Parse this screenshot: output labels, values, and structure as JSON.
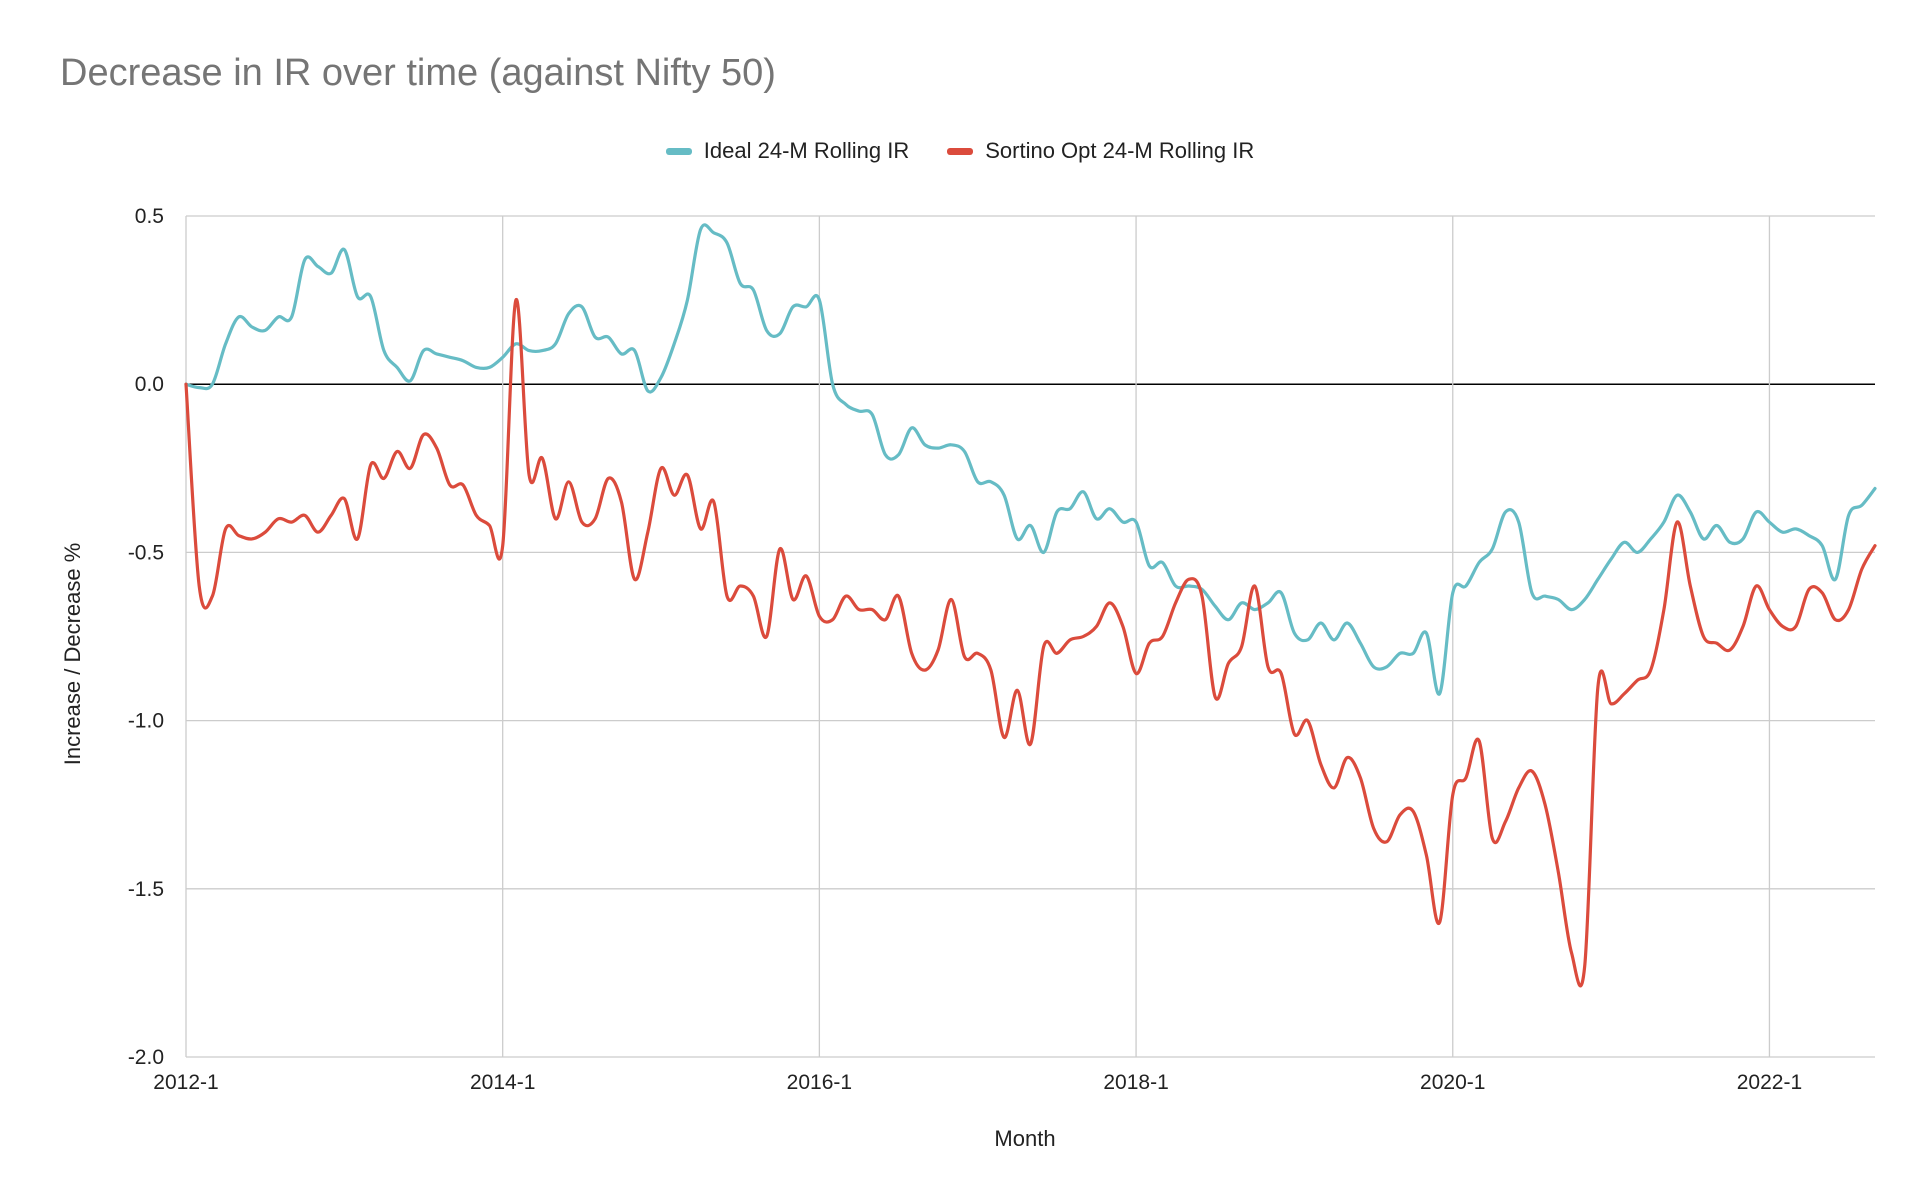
{
  "chart_data": {
    "type": "line",
    "title": "Decrease in IR over time (against Nifty 50)",
    "xlabel": "Month",
    "ylabel": "Increase / Decrease %",
    "x_tick_labels": [
      "2012-1",
      "2014-1",
      "2016-1",
      "2018-1",
      "2020-1",
      "2022-1"
    ],
    "y_tick_labels": [
      "0.5",
      "0.0",
      "-0.5",
      "-1.0",
      "-1.5",
      "-2.0"
    ],
    "ylim": [
      -2.0,
      0.5
    ],
    "xlim": [
      "2012-1",
      "2022-9"
    ],
    "grid": true,
    "legend_position": "top",
    "x": [
      "2012-1",
      "2012-2",
      "2012-3",
      "2012-4",
      "2012-5",
      "2012-6",
      "2012-7",
      "2012-8",
      "2012-9",
      "2012-10",
      "2012-11",
      "2012-12",
      "2013-1",
      "2013-2",
      "2013-3",
      "2013-4",
      "2013-5",
      "2013-6",
      "2013-7",
      "2013-8",
      "2013-9",
      "2013-10",
      "2013-11",
      "2013-12",
      "2014-1",
      "2014-2",
      "2014-3",
      "2014-4",
      "2014-5",
      "2014-6",
      "2014-7",
      "2014-8",
      "2014-9",
      "2014-10",
      "2014-11",
      "2014-12",
      "2015-1",
      "2015-2",
      "2015-3",
      "2015-4",
      "2015-5",
      "2015-6",
      "2015-7",
      "2015-8",
      "2015-9",
      "2015-10",
      "2015-11",
      "2015-12",
      "2016-1",
      "2016-2",
      "2016-3",
      "2016-4",
      "2016-5",
      "2016-6",
      "2016-7",
      "2016-8",
      "2016-9",
      "2016-10",
      "2016-11",
      "2016-12",
      "2017-1",
      "2017-2",
      "2017-3",
      "2017-4",
      "2017-5",
      "2017-6",
      "2017-7",
      "2017-8",
      "2017-9",
      "2017-10",
      "2017-11",
      "2017-12",
      "2018-1",
      "2018-2",
      "2018-3",
      "2018-4",
      "2018-5",
      "2018-6",
      "2018-7",
      "2018-8",
      "2018-9",
      "2018-10",
      "2018-11",
      "2018-12",
      "2019-1",
      "2019-2",
      "2019-3",
      "2019-4",
      "2019-5",
      "2019-6",
      "2019-7",
      "2019-8",
      "2019-9",
      "2019-10",
      "2019-11",
      "2019-12",
      "2020-1",
      "2020-2",
      "2020-3",
      "2020-4",
      "2020-5",
      "2020-6",
      "2020-7",
      "2020-8",
      "2020-9",
      "2020-10",
      "2020-11",
      "2020-12",
      "2021-1",
      "2021-2",
      "2021-3",
      "2021-4",
      "2021-5",
      "2021-6",
      "2021-7",
      "2021-8",
      "2021-9",
      "2021-10",
      "2021-11",
      "2021-12",
      "2022-1",
      "2022-2",
      "2022-3",
      "2022-4",
      "2022-5",
      "2022-6",
      "2022-7",
      "2022-8",
      "2022-9"
    ],
    "series": [
      {
        "name": "Ideal 24-M Rolling IR",
        "color": "#66bcc5",
        "values": [
          0.0,
          -0.01,
          0.0,
          0.12,
          0.2,
          0.17,
          0.16,
          0.2,
          0.2,
          0.37,
          0.35,
          0.33,
          0.4,
          0.26,
          0.26,
          0.1,
          0.05,
          0.01,
          0.1,
          0.09,
          0.08,
          0.07,
          0.05,
          0.05,
          0.08,
          0.12,
          0.1,
          0.1,
          0.12,
          0.21,
          0.23,
          0.14,
          0.14,
          0.09,
          0.1,
          -0.02,
          0.02,
          0.12,
          0.25,
          0.46,
          0.45,
          0.42,
          0.3,
          0.28,
          0.16,
          0.15,
          0.23,
          0.23,
          0.25,
          0.0,
          -0.06,
          -0.08,
          -0.09,
          -0.21,
          -0.21,
          -0.13,
          -0.18,
          -0.19,
          -0.18,
          -0.2,
          -0.29,
          -0.29,
          -0.33,
          -0.46,
          -0.42,
          -0.5,
          -0.38,
          -0.37,
          -0.32,
          -0.4,
          -0.37,
          -0.41,
          -0.41,
          -0.54,
          -0.53,
          -0.6,
          -0.6,
          -0.61,
          -0.66,
          -0.7,
          -0.65,
          -0.67,
          -0.65,
          -0.62,
          -0.74,
          -0.76,
          -0.71,
          -0.76,
          -0.71,
          -0.77,
          -0.84,
          -0.84,
          -0.8,
          -0.8,
          -0.74,
          -0.92,
          -0.62,
          -0.6,
          -0.53,
          -0.49,
          -0.38,
          -0.41,
          -0.62,
          -0.63,
          -0.64,
          -0.67,
          -0.64,
          -0.58,
          -0.52,
          -0.47,
          -0.5,
          -0.46,
          -0.41,
          -0.33,
          -0.38,
          -0.46,
          -0.42,
          -0.47,
          -0.46,
          -0.38,
          -0.41,
          -0.44,
          -0.43,
          -0.45,
          -0.48,
          -0.58,
          -0.39,
          -0.36,
          -0.31
        ]
      },
      {
        "name": "Sortino Opt 24-M Rolling IR",
        "color": "#db4b3c",
        "values": [
          0.0,
          -0.6,
          -0.63,
          -0.43,
          -0.45,
          -0.46,
          -0.44,
          -0.4,
          -0.41,
          -0.39,
          -0.44,
          -0.39,
          -0.34,
          -0.46,
          -0.24,
          -0.28,
          -0.2,
          -0.25,
          -0.15,
          -0.19,
          -0.3,
          -0.3,
          -0.39,
          -0.42,
          -0.48,
          0.25,
          -0.27,
          -0.22,
          -0.4,
          -0.29,
          -0.41,
          -0.4,
          -0.28,
          -0.35,
          -0.58,
          -0.44,
          -0.25,
          -0.33,
          -0.27,
          -0.43,
          -0.35,
          -0.63,
          -0.6,
          -0.63,
          -0.75,
          -0.49,
          -0.64,
          -0.57,
          -0.69,
          -0.7,
          -0.63,
          -0.67,
          -0.67,
          -0.7,
          -0.63,
          -0.8,
          -0.85,
          -0.79,
          -0.64,
          -0.81,
          -0.8,
          -0.85,
          -1.05,
          -0.91,
          -1.07,
          -0.78,
          -0.8,
          -0.76,
          -0.75,
          -0.72,
          -0.65,
          -0.72,
          -0.86,
          -0.77,
          -0.75,
          -0.65,
          -0.58,
          -0.63,
          -0.93,
          -0.83,
          -0.78,
          -0.6,
          -0.84,
          -0.86,
          -1.04,
          -1.0,
          -1.13,
          -1.2,
          -1.11,
          -1.17,
          -1.32,
          -1.36,
          -1.28,
          -1.27,
          -1.4,
          -1.6,
          -1.22,
          -1.17,
          -1.06,
          -1.35,
          -1.3,
          -1.2,
          -1.15,
          -1.25,
          -1.45,
          -1.69,
          -1.73,
          -0.9,
          -0.95,
          -0.92,
          -0.88,
          -0.85,
          -0.67,
          -0.41,
          -0.6,
          -0.75,
          -0.77,
          -0.79,
          -0.72,
          -0.6,
          -0.67,
          -0.72,
          -0.72,
          -0.61,
          -0.62,
          -0.7,
          -0.67,
          -0.55,
          -0.48
        ]
      }
    ]
  }
}
